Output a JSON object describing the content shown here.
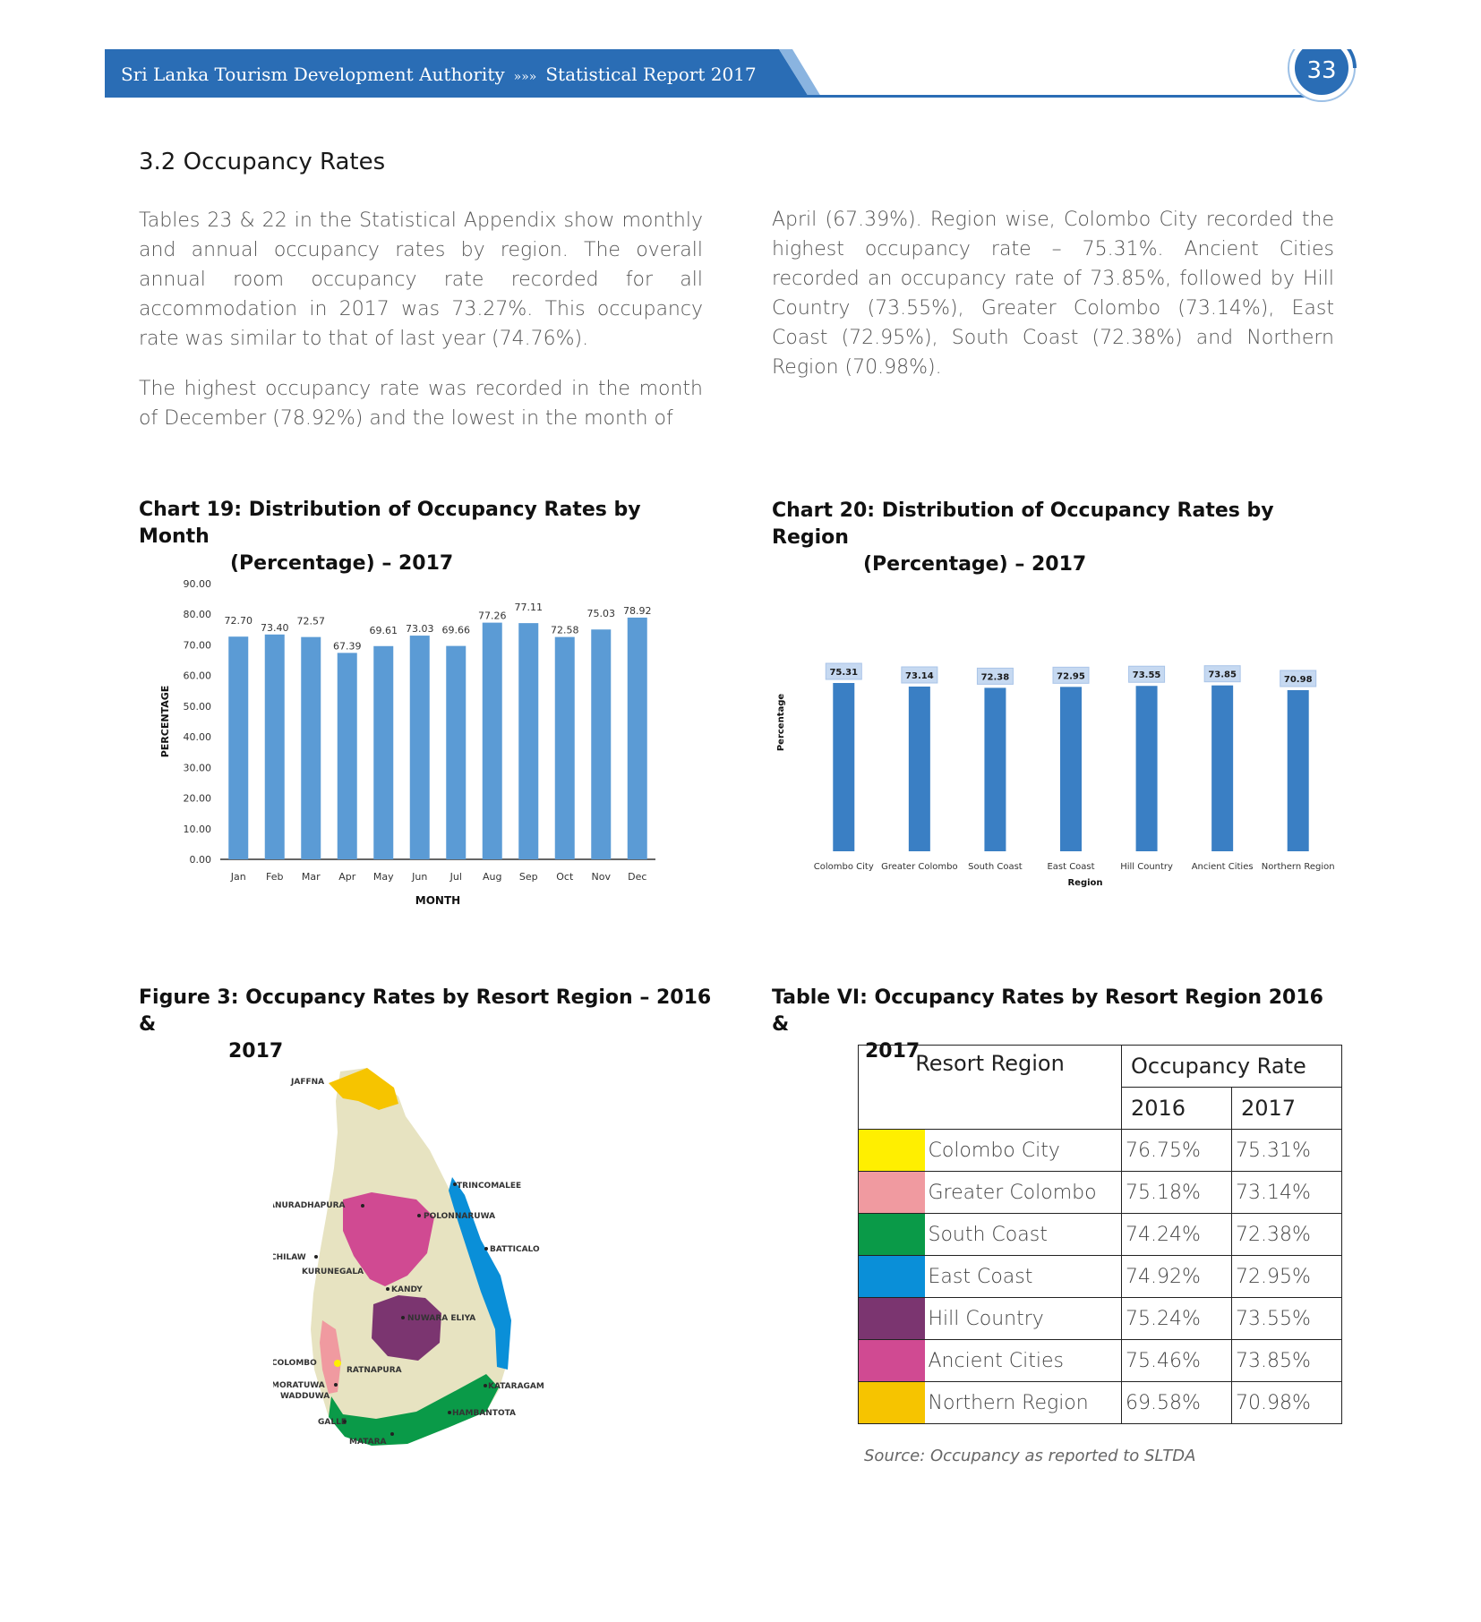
{
  "header": {
    "org": "Sri Lanka Tourism Development Authority",
    "separator": "»»»",
    "report": "Statistical Report 2017",
    "page_number": "33",
    "band_color": "#2a6db5"
  },
  "section": {
    "title": "3.2  Occupancy Rates"
  },
  "paragraphs": {
    "p1": "Tables 23 & 22 in the Statistical Appendix show monthly and annual occupancy rates by region. The overall annual room occupancy rate recorded for all accommodation in 2017 was 73.27%. This occupancy rate was similar to that of last year (74.76%).",
    "p2": "The highest occupancy rate was recorded in the month of December (78.92%) and the lowest in the month of",
    "p3": "April (67.39%). Region wise, Colombo City recorded the highest occupancy rate – 75.31%. Ancient Cities recorded an occupancy rate of 73.85%, followed by Hill Country (73.55%), Greater Colombo (73.14%), East Coast (72.95%), South Coast (72.38%) and Northern Region (70.98%)."
  },
  "chart19": {
    "title_line1": "Chart 19: Distribution of Occupancy Rates by Month",
    "title_line2": "(Percentage) – 2017"
  },
  "chart20": {
    "title_line1": "Chart 20: Distribution of Occupancy Rates by Region",
    "title_line2": "(Percentage) – 2017"
  },
  "figure3": {
    "title_line1": "Figure 3: Occupancy Rates by Resort Region – 2016 &",
    "title_line2": "2017",
    "map_labels": [
      "JAFFNA",
      "TRINCOMALEE",
      "ANURADHAPURA",
      "POLONNARUWA",
      "BATTICALO",
      "CHILAW",
      "KURUNEGALA",
      "KANDY",
      "NUWARA ELIYA",
      "COLOMBO",
      "RATNAPURA",
      "MORATUWA",
      "WADDUWA",
      "KATARAGAM",
      "HAMBANTOTA",
      "GALLE",
      "MATARA"
    ]
  },
  "table": {
    "title_line1": "Table VI: Occupancy Rates by Resort Region 2016 &",
    "title_line2": "2017",
    "head_region": "Resort Region",
    "head_rate": "Occupancy Rate",
    "head_2016": "2016",
    "head_2017": "2017",
    "rows": [
      {
        "color": "#ffef00",
        "region": "Colombo City",
        "v2016": "76.75%",
        "v2017": "75.31%"
      },
      {
        "color": "#f09aa0",
        "region": "Greater Colombo",
        "v2016": "75.18%",
        "v2017": "73.14%"
      },
      {
        "color": "#0a9a48",
        "region": "South Coast",
        "v2016": "74.24%",
        "v2017": "72.38%"
      },
      {
        "color": "#0a8fd8",
        "region": "East Coast",
        "v2016": "74.92%",
        "v2017": "72.95%"
      },
      {
        "color": "#7b3570",
        "region": "Hill Country",
        "v2016": "75.24%",
        "v2017": "73.55%"
      },
      {
        "color": "#d04a92",
        "region": "Ancient Cities",
        "v2016": "75.46%",
        "v2017": "73.85%"
      },
      {
        "color": "#f6c400",
        "region": "Northern Region",
        "v2016": "69.58%",
        "v2017": "70.98%"
      }
    ],
    "source": "Source: Occupancy as reported to SLTDA"
  },
  "chart_data": [
    {
      "type": "bar",
      "title": "Chart 19: Distribution of Occupancy Rates by Month (Percentage) – 2017",
      "categories": [
        "Jan",
        "Feb",
        "Mar",
        "Apr",
        "May",
        "Jun",
        "Jul",
        "Aug",
        "Sep",
        "Oct",
        "Nov",
        "Dec"
      ],
      "values": [
        72.7,
        73.4,
        72.57,
        67.39,
        69.61,
        73.03,
        69.66,
        77.26,
        77.11,
        72.58,
        75.03,
        78.92
      ],
      "value_labels": [
        "72.70",
        "73.40",
        "72.57",
        "67.39",
        "69.61",
        "73.03",
        "69.66",
        "77.26",
        "77.11",
        "72.58",
        "75.03",
        "78.92"
      ],
      "ticks": [
        "0.00",
        "10.00",
        "20.00",
        "30.00",
        "40.00",
        "50.00",
        "60.00",
        "70.00",
        "80.00",
        "90.00"
      ],
      "xlabel": "MONTH",
      "ylabel": "PERCENTAGE",
      "ylim": [
        0,
        90
      ],
      "grid": false,
      "color": "#5b9bd5"
    },
    {
      "type": "bar",
      "title": "Chart 20: Distribution of Occupancy Rates by Region (Percentage) – 2017",
      "categories": [
        "Colombo City",
        "Greater Colombo",
        "South Coast",
        "East Coast",
        "Hill Country",
        "Ancient Cities",
        "Northern Region"
      ],
      "values": [
        75.31,
        73.14,
        72.38,
        72.95,
        73.55,
        73.85,
        70.98
      ],
      "value_labels": [
        "75.31",
        "73.14",
        "72.38",
        "72.95",
        "73.55",
        "73.85",
        "70.98"
      ],
      "xlabel": "Region",
      "ylabel": "Percentage",
      "grid": false,
      "color": "#3a7fc4"
    }
  ]
}
